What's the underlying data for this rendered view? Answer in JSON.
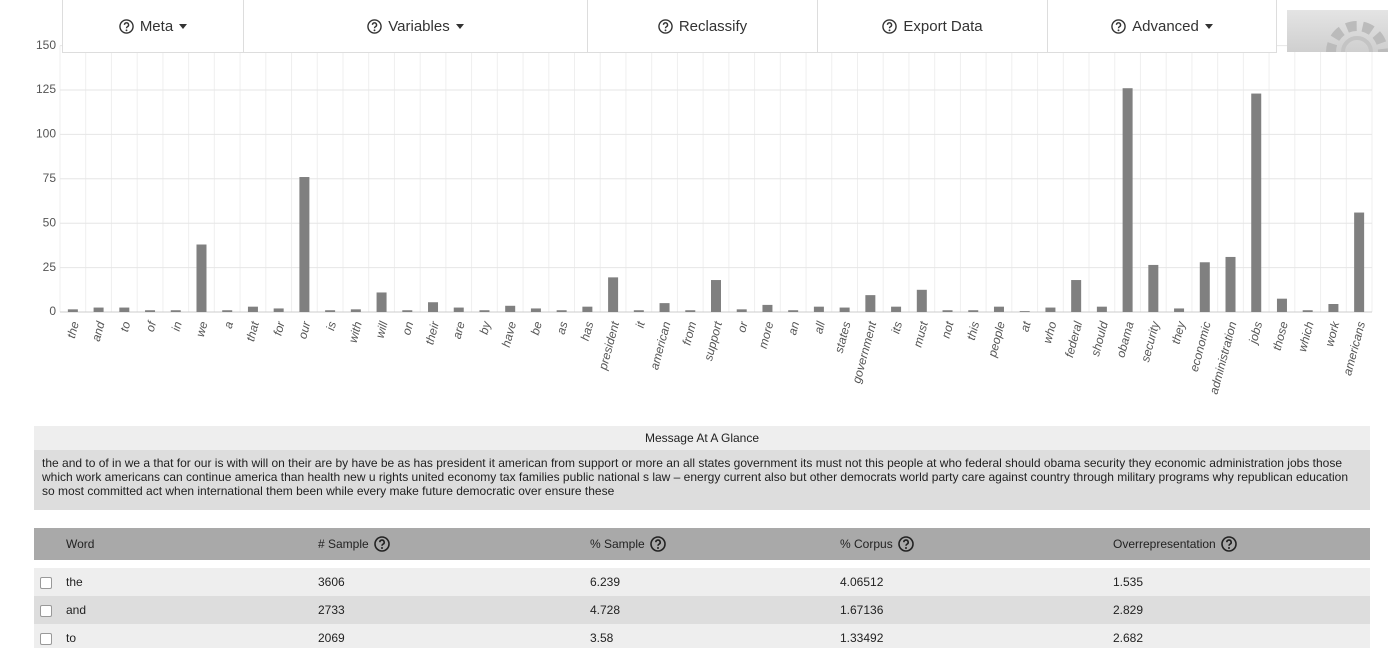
{
  "nav": {
    "items": [
      "Meta",
      "Variables",
      "Reclassify",
      "Export Data",
      "Advanced"
    ]
  },
  "chart_data": {
    "type": "bar",
    "categories": [
      "the",
      "and",
      "to",
      "of",
      "in",
      "we",
      "a",
      "that",
      "for",
      "our",
      "is",
      "with",
      "will",
      "on",
      "their",
      "are",
      "by",
      "have",
      "be",
      "as",
      "has",
      "president",
      "it",
      "american",
      "from",
      "support",
      "or",
      "more",
      "an",
      "all",
      "states",
      "government",
      "its",
      "must",
      "not",
      "this",
      "people",
      "at",
      "who",
      "federal",
      "should",
      "obama",
      "security",
      "they",
      "economic",
      "administration",
      "jobs",
      "those",
      "which",
      "work",
      "americans"
    ],
    "values": [
      1.5,
      2.5,
      2.5,
      1,
      1,
      38,
      1,
      3,
      2,
      76,
      1,
      1.5,
      11,
      1,
      5.5,
      2.5,
      1,
      3.5,
      2,
      1,
      3,
      19.5,
      1,
      5,
      1,
      18,
      1.5,
      4,
      1,
      3,
      2.5,
      9.5,
      3,
      12.5,
      1,
      1,
      3,
      0.5,
      2.5,
      18,
      3,
      126,
      26.5,
      2,
      28,
      31,
      123,
      7.5,
      1,
      4.5,
      56
    ],
    "color": "#808080",
    "ylim": [
      0,
      150
    ],
    "yticks": [
      0,
      25,
      50,
      75,
      100,
      125,
      150
    ],
    "grid": true
  },
  "message": {
    "title": "Message At A Glance",
    "text": "the and to of in we a that for our is with will on their are by have be as has president it american from support or more an all states government its must not this people at who federal should obama security they economic administration jobs those which work americans can continue america than health new u rights united economy tax families public national s law – energy current also but other democrats world party care against country through military programs why republican education so most committed act when international them been while every make future democratic over ensure these"
  },
  "table": {
    "columns": [
      "Word",
      "# Sample",
      "% Sample",
      "% Corpus",
      "Overrepresentation"
    ],
    "rows": [
      [
        "the",
        "3606",
        "6.239",
        "4.06512",
        "1.535"
      ],
      [
        "and",
        "2733",
        "4.728",
        "1.67136",
        "2.829"
      ],
      [
        "to",
        "2069",
        "3.58",
        "1.33492",
        "2.682"
      ]
    ]
  }
}
